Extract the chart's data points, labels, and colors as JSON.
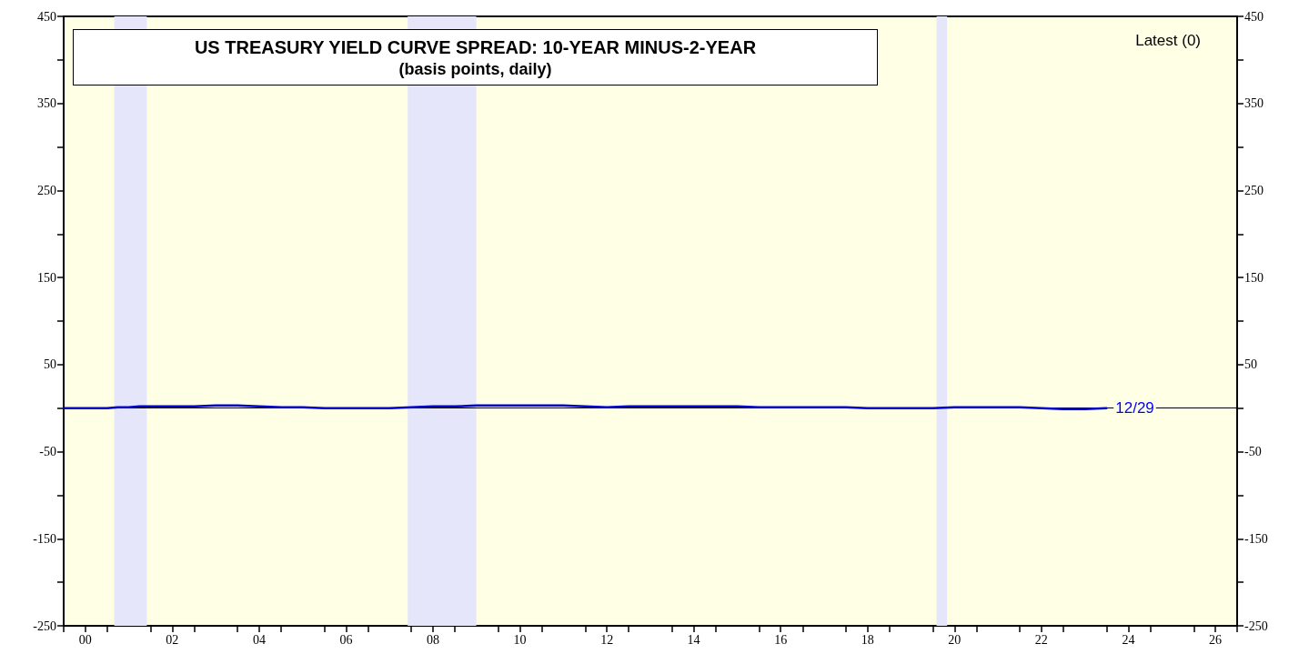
{
  "chart_data": {
    "type": "line",
    "title": "US TREASURY YIELD CURVE SPREAD: 10-YEAR MINUS-2-YEAR",
    "subtitle": "(basis points, daily)",
    "annotations": [
      "Latest (0)",
      {
        "text": "12/29",
        "x": "2023-12-29",
        "y": 0
      }
    ],
    "x": [
      "2000-01-03",
      "2000-04-01",
      "2000-07-01",
      "2000-10-01",
      "2001-01-01",
      "2001-04-01",
      "2001-07-01",
      "2001-10-01",
      "2002-01-01",
      "2002-07-01",
      "2003-01-01",
      "2003-07-01",
      "2004-01-01",
      "2004-07-01",
      "2005-01-01",
      "2005-07-01",
      "2006-01-01",
      "2006-07-01",
      "2007-01-01",
      "2007-07-01",
      "2008-01-01",
      "2008-07-01",
      "2009-01-01",
      "2009-07-01",
      "2010-01-01",
      "2010-07-01",
      "2011-01-01",
      "2011-07-01",
      "2012-01-01",
      "2012-07-01",
      "2013-01-01",
      "2013-07-01",
      "2014-01-01",
      "2014-07-01",
      "2015-01-01",
      "2015-07-01",
      "2016-01-01",
      "2016-07-01",
      "2017-01-01",
      "2017-07-01",
      "2018-01-01",
      "2018-07-01",
      "2019-01-01",
      "2019-07-01",
      "2020-01-01",
      "2020-07-01",
      "2021-01-01",
      "2021-07-01",
      "2022-01-01",
      "2022-07-01",
      "2023-01-01",
      "2023-07-01",
      "2023-12-29"
    ],
    "series": [
      {
        "color": "#0000cc",
        "values": [
          0,
          0,
          0,
          0,
          0,
          1,
          1,
          2,
          2,
          2,
          2,
          3,
          3,
          2,
          1,
          1,
          0,
          0,
          0,
          0,
          1,
          2,
          2,
          3,
          3,
          3,
          3,
          3,
          2,
          1,
          2,
          2,
          2,
          2,
          2,
          2,
          1,
          1,
          1,
          1,
          1,
          0,
          0,
          0,
          0,
          1,
          1,
          1,
          1,
          0,
          -1,
          -1,
          0
        ]
      }
    ],
    "xlim": [
      "2000",
      "2027"
    ],
    "xticks": [
      {
        "value": "2000",
        "label": null
      },
      {
        "value": "2000-07-01",
        "label": "00"
      },
      {
        "value": "2001",
        "label": null
      },
      {
        "value": "2002",
        "label": null
      },
      {
        "value": "2002-07-01",
        "label": "02"
      },
      {
        "value": "2003",
        "label": null
      },
      {
        "value": "2004",
        "label": null
      },
      {
        "value": "2004-07-01",
        "label": "04"
      },
      {
        "value": "2005",
        "label": null
      },
      {
        "value": "2006",
        "label": null
      },
      {
        "value": "2006-07-01",
        "label": "06"
      },
      {
        "value": "2007",
        "label": null
      },
      {
        "value": "2008",
        "label": null
      },
      {
        "value": "2008-07-01",
        "label": "08"
      },
      {
        "value": "2009",
        "label": null
      },
      {
        "value": "2010",
        "label": null
      },
      {
        "value": "2010-07-01",
        "label": "10"
      },
      {
        "value": "2011",
        "label": null
      },
      {
        "value": "2012",
        "label": null
      },
      {
        "value": "2012-07-01",
        "label": "12"
      },
      {
        "value": "2013",
        "label": null
      },
      {
        "value": "2014",
        "label": null
      },
      {
        "value": "2014-07-01",
        "label": "14"
      },
      {
        "value": "2015",
        "label": null
      },
      {
        "value": "2016",
        "label": null
      },
      {
        "value": "2016-07-01",
        "label": "16"
      },
      {
        "value": "2017",
        "label": null
      },
      {
        "value": "2018",
        "label": null
      },
      {
        "value": "2018-07-01",
        "label": "18"
      },
      {
        "value": "2019",
        "label": null
      },
      {
        "value": "2020",
        "label": null
      },
      {
        "value": "2020-07-01",
        "label": "20"
      },
      {
        "value": "2021",
        "label": null
      },
      {
        "value": "2022",
        "label": null
      },
      {
        "value": "2022-07-01",
        "label": "22"
      },
      {
        "value": "2023",
        "label": null
      },
      {
        "value": "2024",
        "label": null
      },
      {
        "value": "2024-07-01",
        "label": "24"
      },
      {
        "value": "2025",
        "label": null
      },
      {
        "value": "2026",
        "label": null
      },
      {
        "value": "2026-07-01",
        "label": "26"
      },
      {
        "value": "2027",
        "label": null
      }
    ],
    "ylim": [
      -250,
      450
    ],
    "yticks": [
      -250,
      {
        "value": -200,
        "label": null
      },
      -150,
      {
        "value": -100,
        "label": null
      },
      -50,
      {
        "value": 0,
        "label": null
      },
      50,
      {
        "value": 100,
        "label": null
      },
      150,
      {
        "value": 200,
        "label": null
      },
      250,
      {
        "value": 300,
        "label": null
      },
      350,
      {
        "value": 400,
        "label": null
      },
      450
    ],
    "y2lim": [
      -250,
      450
    ],
    "y2ticks": [
      -250,
      {
        "value": -200,
        "label": null
      },
      -150,
      {
        "value": -100,
        "label": null
      },
      -50,
      {
        "value": 0,
        "label": null
      },
      50,
      {
        "value": 100,
        "label": null
      },
      150,
      {
        "value": 200,
        "label": null
      },
      250,
      {
        "value": 300,
        "label": null
      },
      350,
      {
        "value": 400,
        "label": null
      },
      450
    ],
    "bands": [
      {
        "axis": "x",
        "from": "2001-03-01",
        "to": "2001-11-30",
        "color": "#e6e6fa"
      },
      {
        "axis": "x",
        "from": "2007-12-01",
        "to": "2009-06-30",
        "color": "#e6e6fa"
      },
      {
        "axis": "x",
        "from": "2020-02-01",
        "to": "2020-04-30",
        "color": "#e6e6fa"
      }
    ],
    "ref_lines": [
      {
        "axis": "y",
        "value": 0,
        "color": "#000000"
      }
    ],
    "marker": "none",
    "line_style": "solid",
    "grid": false
  }
}
